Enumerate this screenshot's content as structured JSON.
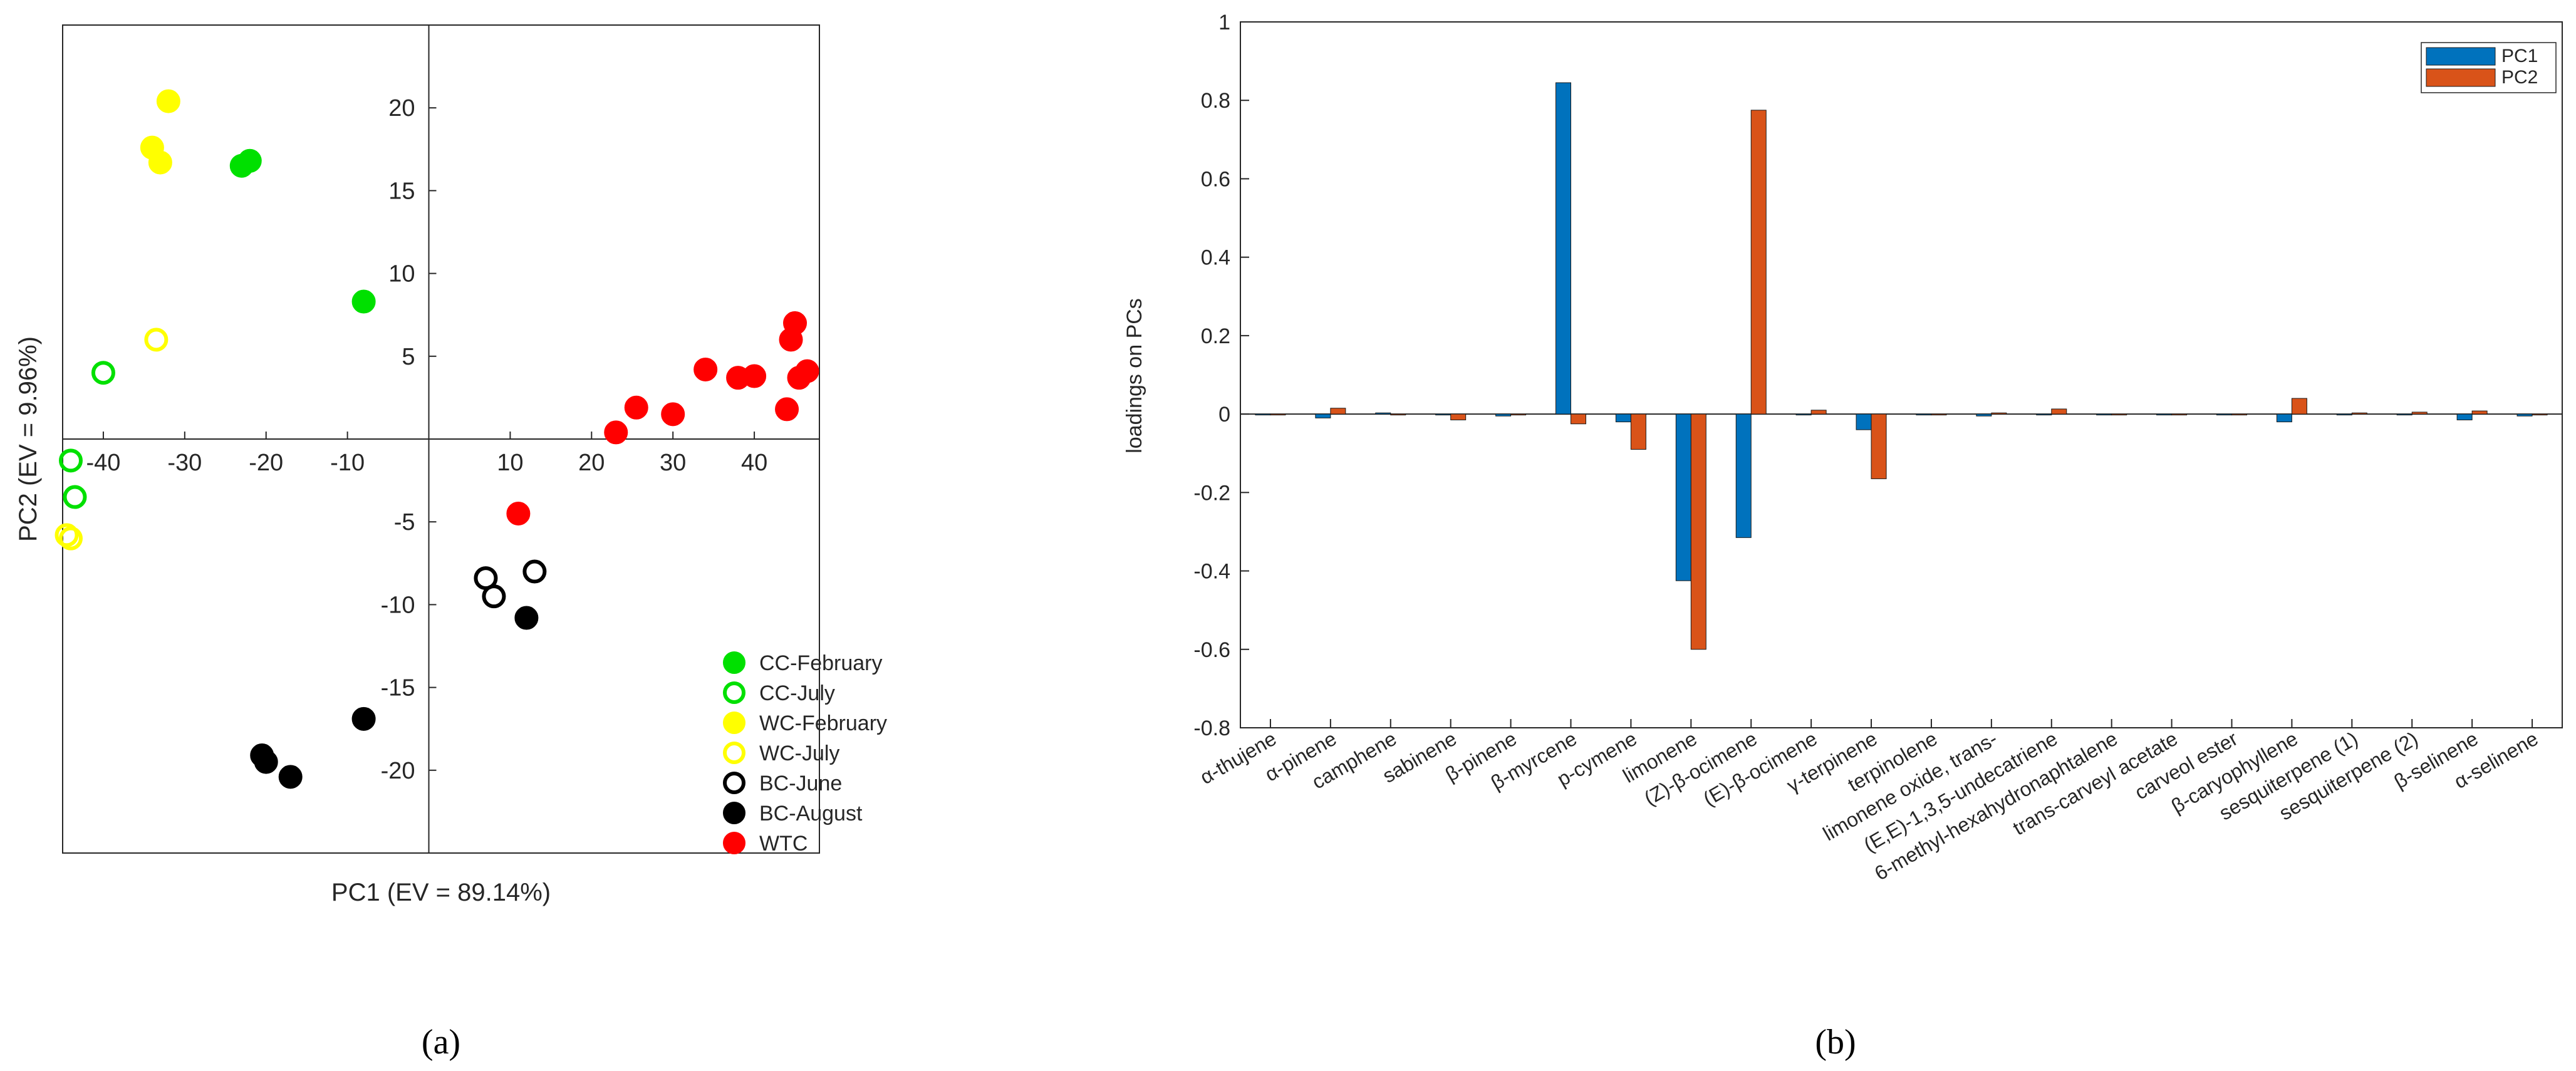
{
  "figure_labels": {
    "a": "(a)",
    "b": "(b)"
  },
  "chart_data": [
    {
      "type": "scatter",
      "xlabel": "PC1 (EV = 89.14%)",
      "ylabel": "PC2 (EV = 9.96%)",
      "xlim": [
        -45,
        48
      ],
      "ylim": [
        -25,
        25
      ],
      "xticks": [
        -40,
        -30,
        -20,
        -10,
        10,
        20,
        30,
        40
      ],
      "yticks": [
        -20,
        -15,
        -10,
        -5,
        5,
        10,
        15,
        20
      ],
      "axes_through_origin": true,
      "grid": false,
      "legend_position": "bottom-right",
      "series": [
        {
          "name": "CC-February",
          "color": "#00e000",
          "filled": true,
          "points": [
            [
              -23,
              16.5
            ],
            [
              -22,
              16.8
            ],
            [
              -8,
              8.3
            ]
          ]
        },
        {
          "name": "CC-July",
          "color": "#00e000",
          "filled": false,
          "points": [
            [
              -40,
              4
            ],
            [
              -44,
              -1.3
            ],
            [
              -43.5,
              -3.5
            ]
          ]
        },
        {
          "name": "WC-February",
          "color": "#ffff00",
          "filled": true,
          "points": [
            [
              -32,
              20.4
            ],
            [
              -34,
              17.6
            ],
            [
              -33,
              16.7
            ]
          ]
        },
        {
          "name": "WC-July",
          "color": "#ffff00",
          "filled": false,
          "points": [
            [
              -33.5,
              6
            ],
            [
              -44.5,
              -5.8
            ],
            [
              -44,
              -6
            ]
          ]
        },
        {
          "name": "BC-June",
          "color": "#000000",
          "filled": false,
          "points": [
            [
              7,
              -8.4
            ],
            [
              8,
              -9.5
            ],
            [
              13,
              -8
            ]
          ]
        },
        {
          "name": "BC-August",
          "color": "#000000",
          "filled": true,
          "points": [
            [
              12,
              -10.8
            ],
            [
              -20.5,
              -19.1
            ],
            [
              -20,
              -19.5
            ],
            [
              -17,
              -20.4
            ],
            [
              -8,
              -16.9
            ]
          ]
        },
        {
          "name": "WTC",
          "color": "#ff0000",
          "filled": true,
          "points": [
            [
              23,
              0.4
            ],
            [
              25.5,
              1.9
            ],
            [
              30,
              1.5
            ],
            [
              34,
              4.2
            ],
            [
              38,
              3.7
            ],
            [
              40,
              3.8
            ],
            [
              44,
              1.8
            ],
            [
              44.5,
              6
            ],
            [
              45,
              7
            ],
            [
              45.5,
              3.7
            ],
            [
              46.5,
              4.1
            ],
            [
              11,
              -4.5
            ]
          ]
        }
      ]
    },
    {
      "type": "bar",
      "ylabel": "loadings on PCs",
      "ylim": [
        -0.8,
        1
      ],
      "yticks": [
        -0.8,
        -0.6,
        -0.4,
        -0.2,
        0,
        0.2,
        0.4,
        0.6,
        0.8,
        1
      ],
      "ytick_labels": [
        "-0.8",
        "-0.6",
        "-0.4",
        "-0.2",
        "0",
        "0.2",
        "0.4",
        "0.6",
        "0.8",
        "1"
      ],
      "legend_position": "top-right",
      "categories": [
        "α-thujene",
        "α-pinene",
        "camphene",
        "sabinene",
        "β-pinene",
        "β-myrcene",
        "p-cymene",
        "limonene",
        "(Z)-β-ocimene",
        "(E)-β-ocimene",
        "γ-terpinene",
        "terpinolene",
        "limonene oxide, trans-",
        "(E,E)-1,3,5-undecatriene",
        "6-methyl-hexahydronaphtalene",
        "trans-carveyl acetate",
        "carveol ester",
        "β-caryophyllene",
        "sesquiterpene (1)",
        "sesquiterpene (2)",
        "β-selinene",
        "α-selinene"
      ],
      "series": [
        {
          "name": "PC1",
          "color": "#0072bd",
          "values": [
            0,
            -0.01,
            0.003,
            0,
            -0.005,
            0.845,
            -0.02,
            -0.425,
            -0.315,
            0,
            -0.04,
            0,
            -0.005,
            0,
            0,
            0,
            0,
            -0.02,
            0,
            0,
            -0.015,
            -0.005
          ]
        },
        {
          "name": "PC2",
          "color": "#d95319",
          "values": [
            0,
            0.015,
            0,
            -0.015,
            0,
            -0.025,
            -0.09,
            -0.6,
            0.775,
            0.01,
            -0.165,
            0,
            0.003,
            0.013,
            0,
            0,
            0,
            0.04,
            0.003,
            0.005,
            0.008,
            0
          ]
        }
      ]
    }
  ]
}
